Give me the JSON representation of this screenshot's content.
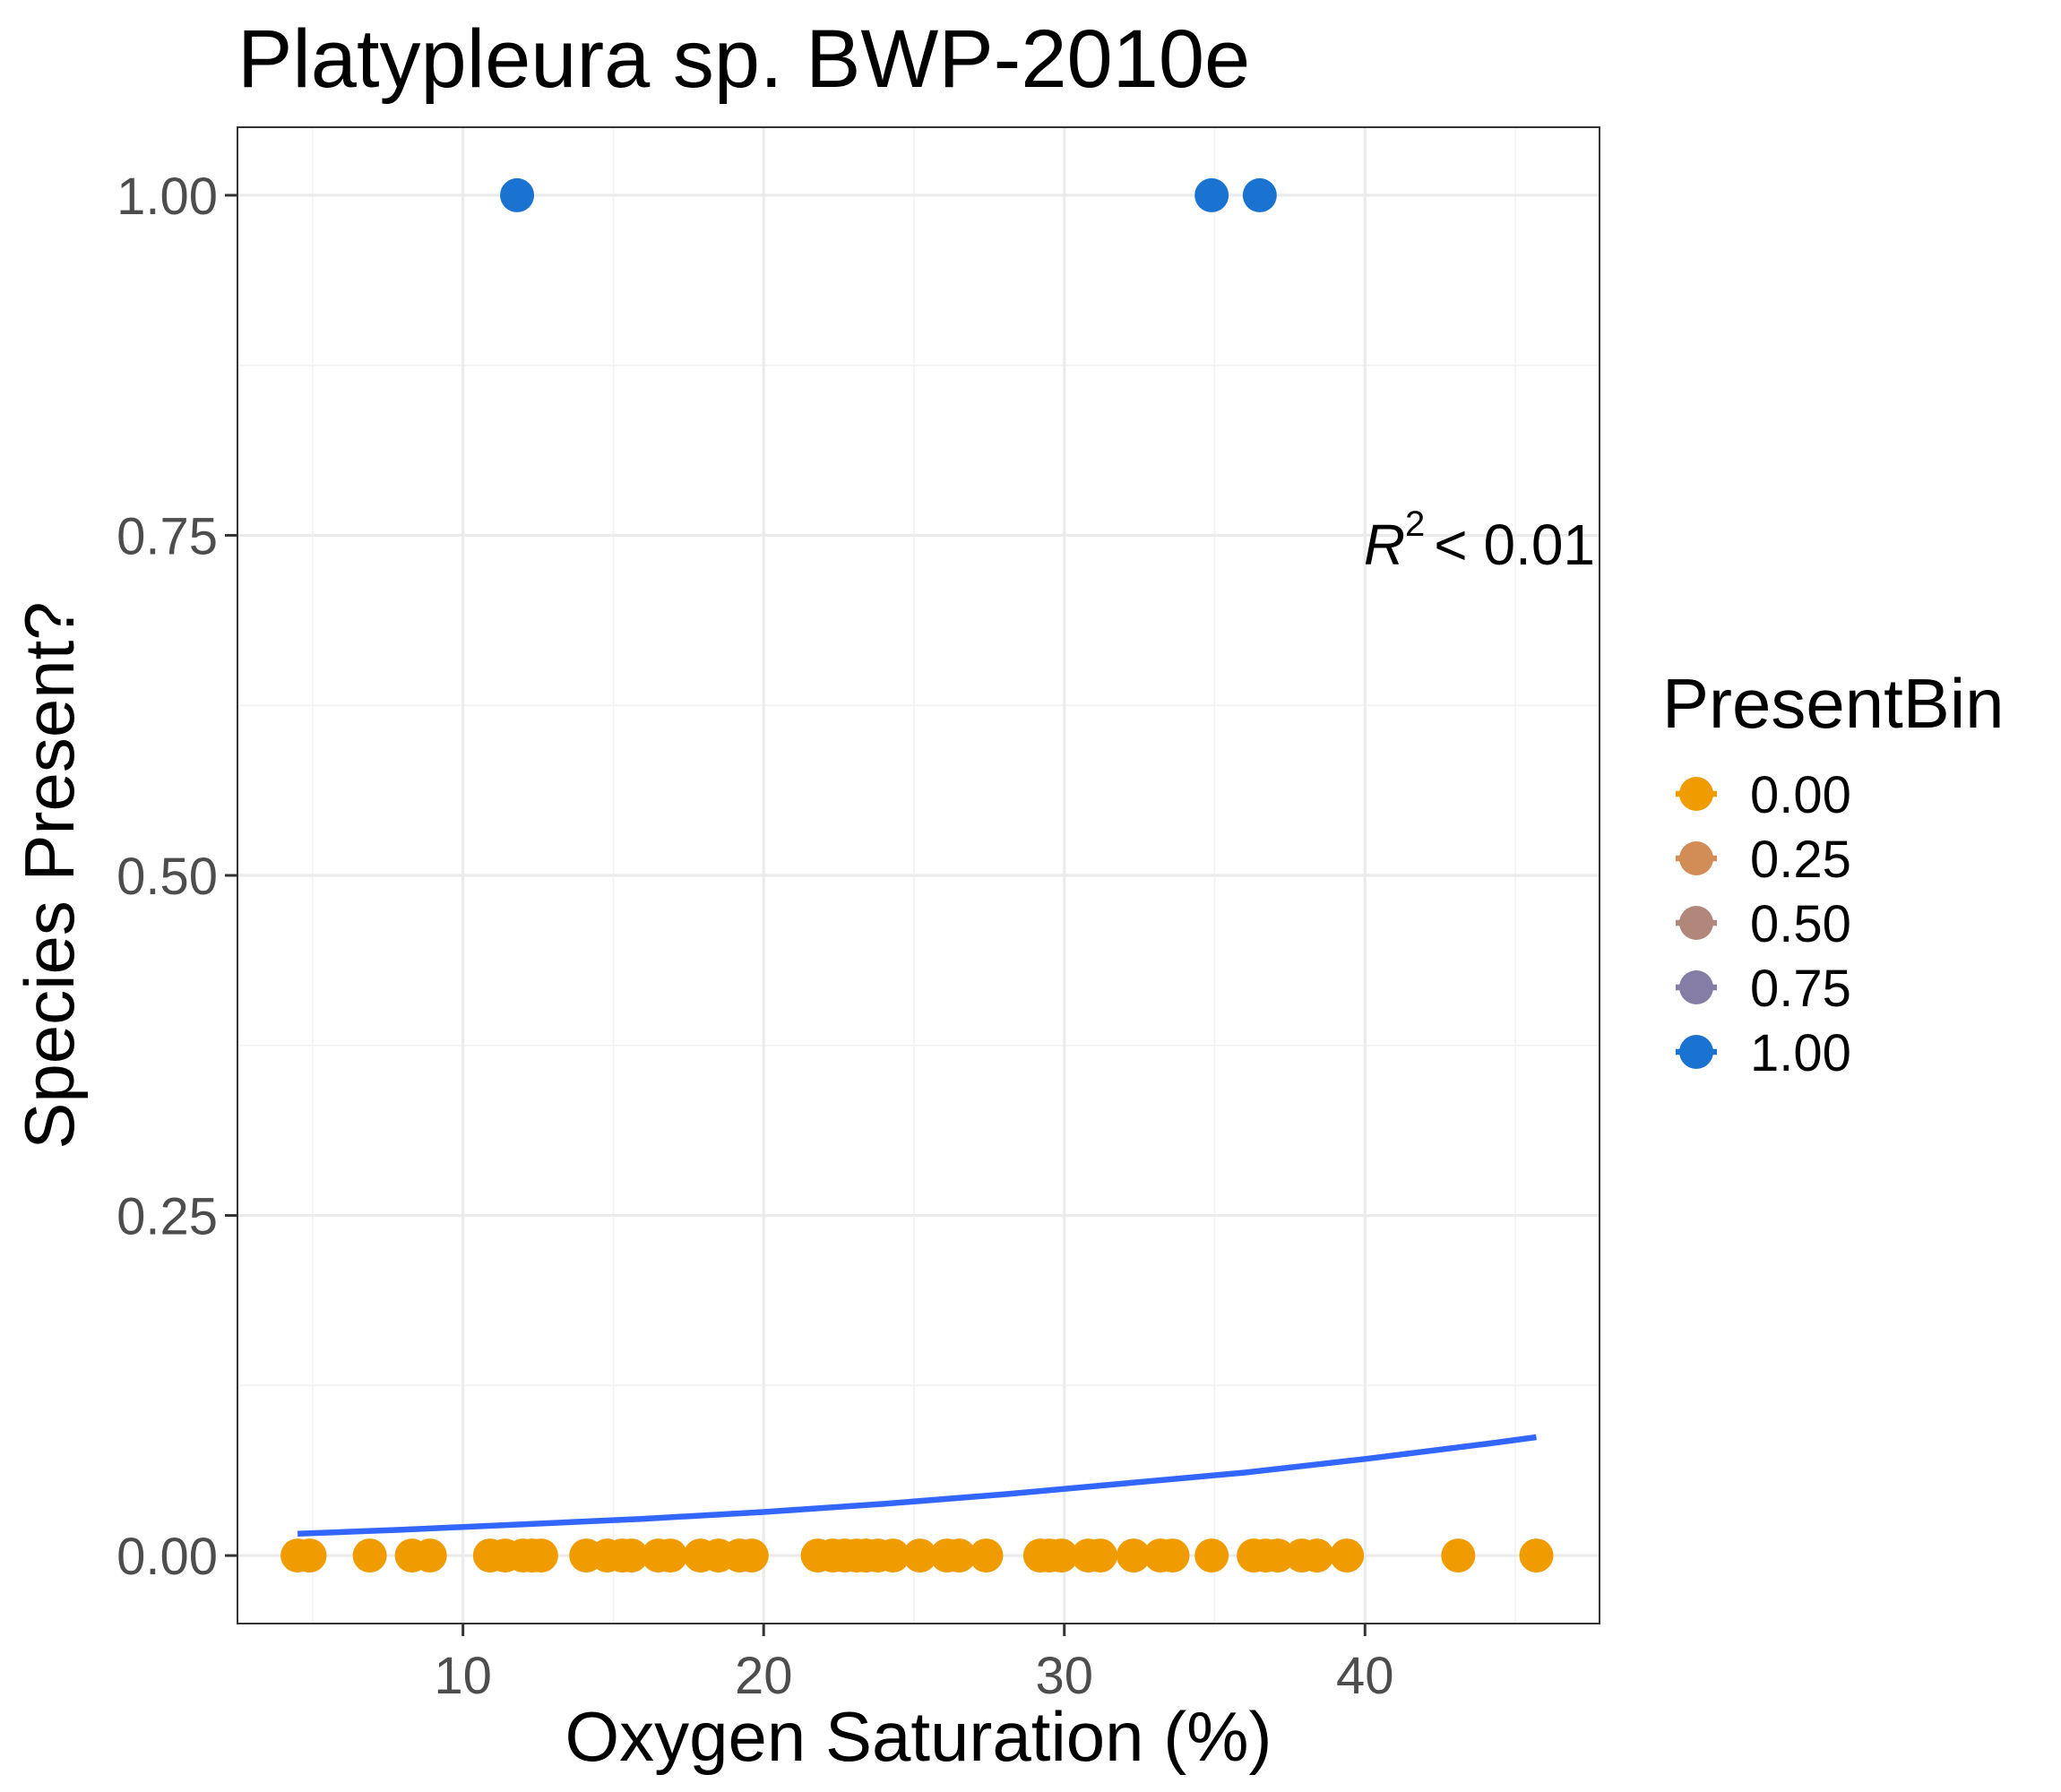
{
  "chart_data": {
    "type": "scatter",
    "title": "Platypleura sp. BWP-2010e",
    "xlabel": "Oxygen Saturation (%)",
    "ylabel": "Species Present?",
    "xlim": [
      2.5,
      47.8
    ],
    "ylim": [
      -0.05,
      1.05
    ],
    "x_ticks": [
      10,
      20,
      30,
      40
    ],
    "x_tick_labels": [
      "10",
      "20",
      "30",
      "40"
    ],
    "y_ticks": [
      0,
      0.25,
      0.5,
      0.75,
      1.0
    ],
    "y_tick_labels": [
      "0.00",
      "0.25",
      "0.50",
      "0.75",
      "1.00"
    ],
    "grid": true,
    "legend": {
      "title": "PresentBin",
      "placement": "right",
      "entries": [
        {
          "label": "0.00",
          "color": "#f09c00"
        },
        {
          "label": "0.25",
          "color": "#d18d55"
        },
        {
          "label": "0.50",
          "color": "#b0877a"
        },
        {
          "label": "0.75",
          "color": "#857da6"
        },
        {
          "label": "1.00",
          "color": "#1a73d1"
        }
      ]
    },
    "annotation": {
      "symbol": "R",
      "superscript": "2",
      "relation": "< 0.01"
    },
    "series": [
      {
        "present_bin": 0,
        "color": "#f09c00",
        "x": [
          4.5,
          4.9,
          6.9,
          8.3,
          8.9,
          10.9,
          11.4,
          12.0,
          12.3,
          12.6,
          14.1,
          14.8,
          15.3,
          15.6,
          16.5,
          16.9,
          17.9,
          18.5,
          19.2,
          19.6,
          21.8,
          22.3,
          22.7,
          23.1,
          23.4,
          23.8,
          24.3,
          25.2,
          26.1,
          26.5,
          27.4,
          29.2,
          29.5,
          29.9,
          30.8,
          31.2,
          32.3,
          33.2,
          33.6,
          34.9,
          36.3,
          36.7,
          37.1,
          37.9,
          38.4,
          39.4,
          43.1,
          45.7
        ],
        "y": [
          0,
          0,
          0,
          0,
          0,
          0,
          0,
          0,
          0,
          0,
          0,
          0,
          0,
          0,
          0,
          0,
          0,
          0,
          0,
          0,
          0,
          0,
          0,
          0,
          0,
          0,
          0,
          0,
          0,
          0,
          0,
          0,
          0,
          0,
          0,
          0,
          0,
          0,
          0,
          0,
          0,
          0,
          0,
          0,
          0,
          0,
          0,
          0
        ]
      },
      {
        "present_bin": 1,
        "color": "#1a73d1",
        "x": [
          11.8,
          34.9,
          36.5
        ],
        "y": [
          1,
          1,
          1
        ]
      }
    ],
    "fit": {
      "color": "#3366ff",
      "x": [
        4.5,
        8,
        12,
        16,
        20,
        24,
        28,
        32,
        36,
        40,
        44,
        45.7
      ],
      "y": [
        0.016,
        0.019,
        0.023,
        0.027,
        0.032,
        0.038,
        0.045,
        0.053,
        0.061,
        0.071,
        0.082,
        0.087
      ]
    }
  }
}
